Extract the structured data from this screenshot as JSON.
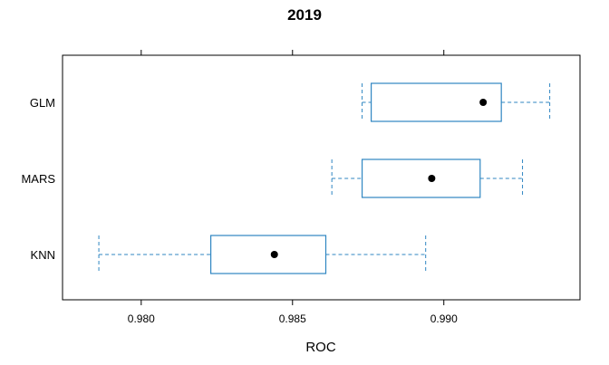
{
  "chart_data": {
    "type": "boxplot",
    "title": "2019",
    "xlabel": "ROC",
    "ylabel": "",
    "xlim": [
      0.9774,
      0.9945
    ],
    "x_ticks": [
      0.98,
      0.985,
      0.99
    ],
    "x_tick_labels": [
      "0.980",
      "0.985",
      "0.990"
    ],
    "categories": [
      "GLM",
      "MARS",
      "KNN"
    ],
    "series": [
      {
        "category": "GLM",
        "min": 0.9873,
        "q1": 0.9876,
        "median": 0.9913,
        "q3": 0.9919,
        "max": 0.9935
      },
      {
        "category": "MARS",
        "min": 0.9863,
        "q1": 0.9873,
        "median": 0.9896,
        "q3": 0.9912,
        "max": 0.9926
      },
      {
        "category": "KNN",
        "min": 0.9786,
        "q1": 0.9823,
        "median": 0.9844,
        "q3": 0.9861,
        "max": 0.9894
      }
    ],
    "grid": false,
    "legend": "none",
    "colors": {
      "box": "#2f86c2",
      "median_dot": "#000000",
      "frame": "#000000"
    }
  }
}
